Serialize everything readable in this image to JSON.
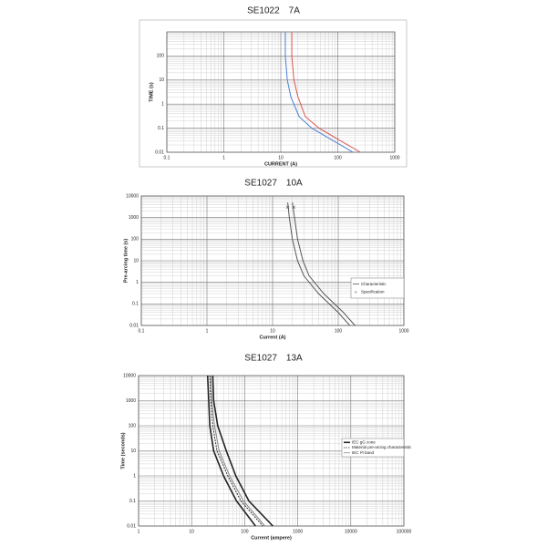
{
  "chart_data": [
    {
      "type": "line",
      "title": "SE1022　7A",
      "xlabel": "CURRENT (A)",
      "ylabel": "TIME (s)",
      "xscale": "log",
      "yscale": "log",
      "xlim": [
        0.1,
        1000
      ],
      "ylim": [
        0.01,
        1000
      ],
      "xticks": [
        0.1,
        1,
        10,
        100,
        1000
      ],
      "yticks": [
        0.01,
        0.1,
        1,
        10,
        100
      ],
      "grid": true,
      "minor_grid": true,
      "frame": true,
      "series": [
        {
          "color": "#d9534f",
          "x": [
            15.6,
            15.6,
            17,
            20,
            27,
            47,
            100,
            250
          ],
          "values": [
            1000,
            100,
            10,
            2,
            0.3,
            0.1,
            0.035,
            0.01
          ]
        },
        {
          "color": "#4a7fd4",
          "x": [
            12,
            12,
            13,
            15,
            21,
            35,
            75,
            185
          ],
          "values": [
            1000,
            100,
            10,
            2,
            0.3,
            0.1,
            0.035,
            0.01
          ]
        }
      ]
    },
    {
      "type": "line",
      "title": "SE1027　10A",
      "xlabel": "Current (A)",
      "ylabel": "Pre-arcing time (s)",
      "xscale": "log",
      "yscale": "log",
      "xlim": [
        0.1,
        1000
      ],
      "ylim": [
        0.01,
        10000
      ],
      "xticks": [
        0.1,
        1,
        10,
        100,
        1000
      ],
      "yticks": [
        0.01,
        0.1,
        1,
        10,
        100,
        1000,
        10000
      ],
      "grid": true,
      "minor_grid": true,
      "legend": "right",
      "series": [
        {
          "name": "Characteristic",
          "color": "#555555",
          "x": [
            17,
            18,
            20,
            24,
            30,
            50,
            100,
            150
          ],
          "values": [
            5000,
            1000,
            100,
            10,
            2,
            0.3,
            0.04,
            0.01
          ]
        },
        {
          "color": "#555555",
          "x": [
            20,
            21.6,
            24,
            29,
            36,
            60,
            120,
            180
          ],
          "values": [
            5000,
            1000,
            100,
            10,
            2,
            0.3,
            0.04,
            0.01
          ]
        },
        {
          "name": "Specification",
          "color": "#555555",
          "line": false,
          "marker": "x",
          "x": [
            17,
            21
          ],
          "values": [
            3000,
            3000
          ]
        }
      ]
    },
    {
      "type": "line",
      "title": "SE1027　13A",
      "xlabel": "Current (ampere)",
      "ylabel": "Time (seconds)",
      "xscale": "log",
      "yscale": "log",
      "xlim": [
        1,
        100000
      ],
      "ylim": [
        0.01,
        10000
      ],
      "xticks": [
        1,
        10,
        100,
        1000,
        10000,
        100000
      ],
      "yticks": [
        0.01,
        0.1,
        1,
        10,
        100,
        1000,
        10000
      ],
      "grid": true,
      "minor_grid": true,
      "legend": "right",
      "series": [
        {
          "name": "IEC gG zone",
          "color": "#222222",
          "width": 1.6,
          "x": [
            20,
            21,
            22,
            26,
            40,
            70,
            160
          ],
          "values": [
            10000,
            1000,
            100,
            10,
            1,
            0.1,
            0.01
          ]
        },
        {
          "name": "Material pre-arcing characteristic",
          "color": "#333333",
          "dash": true,
          "x": [
            22,
            23,
            25,
            30,
            48,
            85,
            220
          ],
          "values": [
            10000,
            1000,
            100,
            10,
            1,
            0.1,
            0.01
          ]
        },
        {
          "name": "IEC I²t band",
          "color": "#888888",
          "x": [
            23,
            24,
            27,
            33,
            52,
            95,
            240
          ],
          "values": [
            10000,
            1000,
            100,
            10,
            1,
            0.1,
            0.01
          ]
        },
        {
          "color": "#222222",
          "width": 1.6,
          "x": [
            25,
            26,
            31,
            45,
            68,
            120,
            340
          ],
          "values": [
            10000,
            1000,
            100,
            10,
            1,
            0.1,
            0.01
          ]
        }
      ]
    }
  ]
}
